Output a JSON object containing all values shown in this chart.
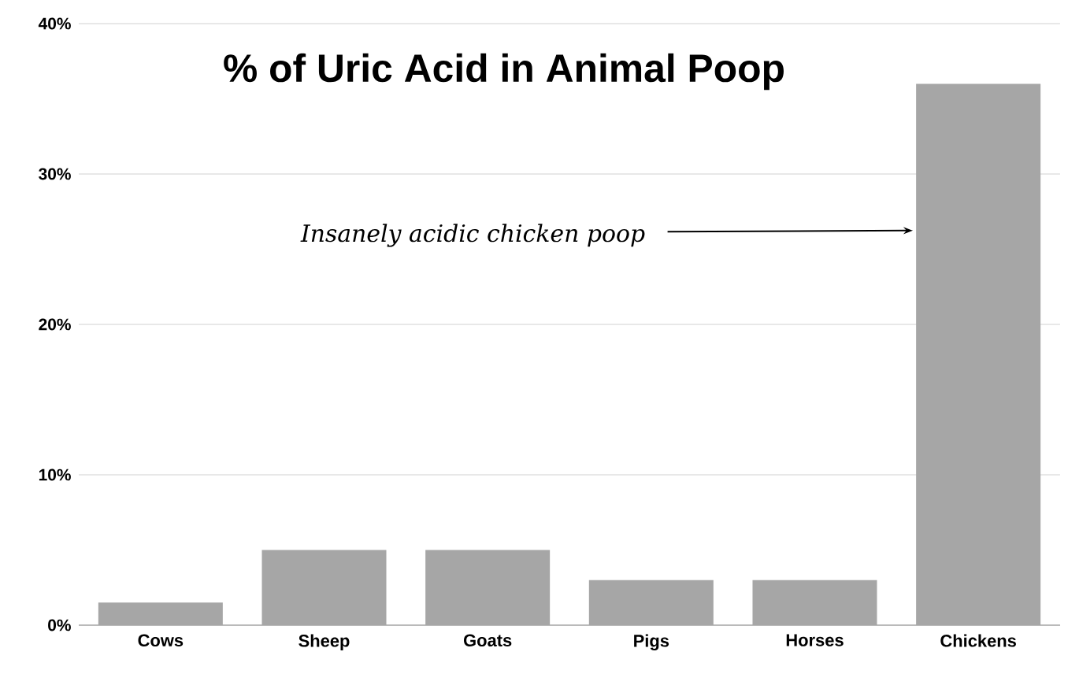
{
  "chart_data": {
    "type": "bar",
    "title": "% of Uric Acid in Animal Poop",
    "categories": [
      "Cows",
      "Sheep",
      "Goats",
      "Pigs",
      "Horses",
      "Chickens"
    ],
    "values": [
      1.5,
      5,
      5,
      3,
      3,
      36
    ],
    "color": "#a6a6a6",
    "ylim": [
      0,
      40
    ],
    "yticks": [
      {
        "value": 0,
        "label": "0%"
      },
      {
        "value": 10,
        "label": "10%"
      },
      {
        "value": 20,
        "label": "20%"
      },
      {
        "value": 30,
        "label": "30%"
      },
      {
        "value": 40,
        "label": "40%"
      }
    ],
    "grid": "y",
    "annotations": [
      "Insanely acidic chicken poop"
    ]
  }
}
